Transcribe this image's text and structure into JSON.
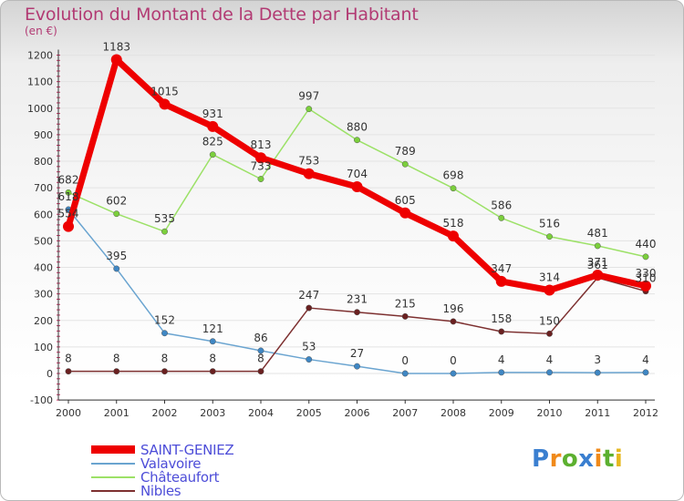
{
  "header": {
    "title": "Evolution du Montant de la Dette par Habitant",
    "unit": "(en €)"
  },
  "chart_data": {
    "type": "line",
    "title": "Evolution du Montant de la Dette par Habitant",
    "ylabel": "(en €)",
    "xlabel": "",
    "ylim": [
      -100,
      1200
    ],
    "yticks": [
      -100,
      0,
      100,
      200,
      300,
      400,
      500,
      600,
      700,
      800,
      900,
      1000,
      1100,
      1200
    ],
    "x": [
      "2000",
      "2001",
      "2002",
      "2003",
      "2004",
      "2005",
      "2006",
      "2007",
      "2008",
      "2009",
      "2010",
      "2011",
      "2012"
    ],
    "grid": true,
    "legend_position": "bottom-left",
    "series": [
      {
        "name": "Valavoire",
        "color": "#6aa4d0",
        "marker_color": "#3f87c4",
        "values": [
          618,
          395,
          152,
          121,
          86,
          53,
          27,
          0,
          0,
          4,
          4,
          3,
          4
        ]
      },
      {
        "name": "Châteaufort",
        "color": "#9ce167",
        "marker_color": "#7bcf3c",
        "values": [
          682,
          602,
          535,
          825,
          733,
          997,
          880,
          789,
          698,
          586,
          516,
          481,
          440
        ]
      },
      {
        "name": "Nibles",
        "color": "#7d3030",
        "marker_color": "#6a2020",
        "values": [
          8,
          8,
          8,
          8,
          8,
          247,
          231,
          215,
          196,
          158,
          150,
          361,
          310
        ]
      },
      {
        "name": "SAINT-GENIEZ",
        "color": "#ee0000",
        "marker_color": "#ee0000",
        "values": [
          554,
          1183,
          1015,
          931,
          813,
          753,
          704,
          605,
          518,
          347,
          314,
          371,
          330
        ]
      }
    ]
  },
  "legend": {
    "items": [
      {
        "label": "SAINT-GENIEZ",
        "color": "#ee0000"
      },
      {
        "label": "Valavoire",
        "color": "#6aa4d0"
      },
      {
        "label": "Châteaufort",
        "color": "#9ce167"
      },
      {
        "label": "Nibles",
        "color": "#7d3030"
      }
    ]
  },
  "logo": {
    "letters": [
      "P",
      "r",
      "o",
      "x",
      "i",
      "t",
      "i"
    ],
    "colors": [
      "#3a7fd0",
      "#f08a1a",
      "#5cb030",
      "#3a7fd0",
      "#f08a1a",
      "#5cb030",
      "#e6b820"
    ]
  }
}
